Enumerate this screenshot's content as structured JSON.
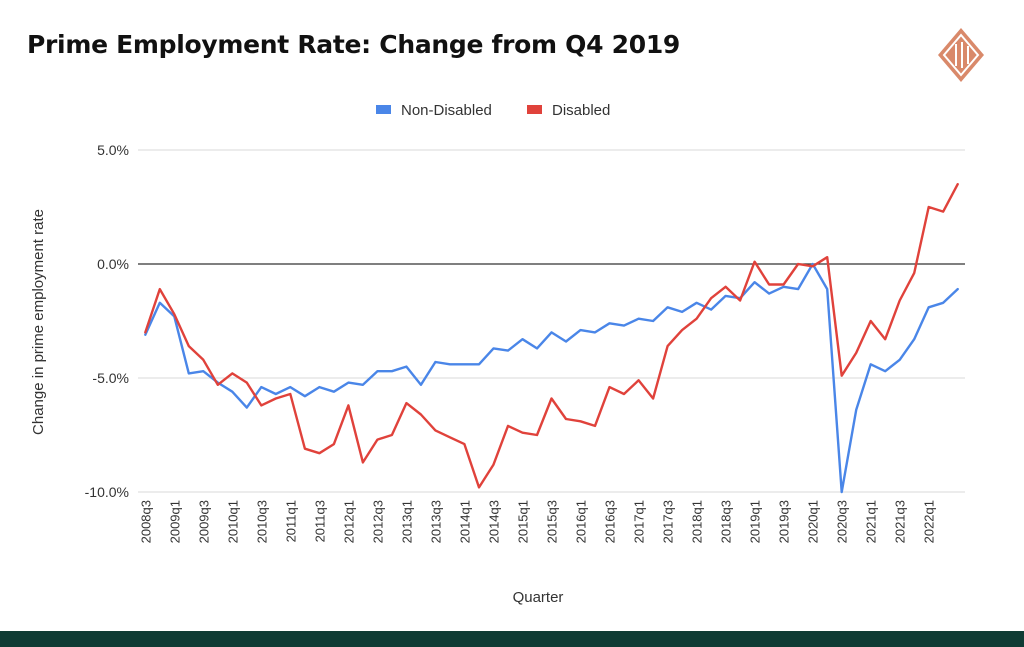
{
  "header": {
    "title": "Prime Employment Rate: Change from Q4 2019"
  },
  "footer": {
    "color": "#0f3b34"
  },
  "chart_data": {
    "type": "line",
    "title": "Prime Employment Rate: Change from Q4 2019",
    "xlabel": "Quarter",
    "ylabel": "Change in prime employment rate",
    "ylim": [
      -10,
      5
    ],
    "yticks": [
      5,
      0,
      -5,
      -10
    ],
    "ytick_labels": [
      "5.0%",
      "0.0%",
      "-5.0%",
      "-10.0%"
    ],
    "grid": true,
    "legend_position": "top",
    "x": [
      "2008q3",
      "2008q4",
      "2009q1",
      "2009q2",
      "2009q3",
      "2009q4",
      "2010q1",
      "2010q2",
      "2010q3",
      "2010q4",
      "2011q1",
      "2011q2",
      "2011q3",
      "2011q4",
      "2012q1",
      "2012q2",
      "2012q3",
      "2012q4",
      "2013q1",
      "2013q2",
      "2013q3",
      "2013q4",
      "2014q1",
      "2014q2",
      "2014q3",
      "2014q4",
      "2015q1",
      "2015q2",
      "2015q3",
      "2015q4",
      "2016q1",
      "2016q2",
      "2016q3",
      "2016q4",
      "2017q1",
      "2017q2",
      "2017q3",
      "2017q4",
      "2018q1",
      "2018q2",
      "2018q3",
      "2018q4",
      "2019q1",
      "2019q2",
      "2019q3",
      "2019q4",
      "2020q1",
      "2020q2",
      "2020q3",
      "2020q4",
      "2021q1",
      "2021q2",
      "2021q3",
      "2021q4",
      "2022q1",
      "2022q2",
      "2022q3"
    ],
    "x_tick_labels": [
      "2008q3",
      "2009q1",
      "2009q3",
      "2010q1",
      "2010q3",
      "2011q1",
      "2011q3",
      "2012q1",
      "2012q3",
      "2013q1",
      "2013q3",
      "2014q1",
      "2014q3",
      "2015q1",
      "2015q3",
      "2016q1",
      "2016q3",
      "2017q1",
      "2017q3",
      "2018q1",
      "2018q3",
      "2019q1",
      "2019q3",
      "2020q1",
      "2020q3",
      "2021q1",
      "2021q3",
      "2022q1"
    ],
    "series": [
      {
        "name": "Non-Disabled",
        "color": "#4a86e8",
        "values": [
          -3.1,
          -1.7,
          -2.3,
          -4.8,
          -4.7,
          -5.2,
          -5.6,
          -6.3,
          -5.4,
          -5.7,
          -5.4,
          -5.8,
          -5.4,
          -5.6,
          -5.2,
          -5.3,
          -4.7,
          -4.7,
          -4.5,
          -5.3,
          -4.3,
          -4.4,
          -4.4,
          -4.4,
          -3.7,
          -3.8,
          -3.3,
          -3.7,
          -3.0,
          -3.4,
          -2.9,
          -3.0,
          -2.6,
          -2.7,
          -2.4,
          -2.5,
          -1.9,
          -2.1,
          -1.7,
          -2.0,
          -1.4,
          -1.5,
          -0.8,
          -1.3,
          -1.0,
          -1.1,
          0.0,
          -1.1,
          -10.0,
          -6.4,
          -4.4,
          -4.7,
          -4.2,
          -3.3,
          -1.9,
          -1.7,
          -1.1
        ]
      },
      {
        "name": "Disabled",
        "color": "#e0423b",
        "values": [
          -3.0,
          -1.1,
          -2.2,
          -3.6,
          -4.2,
          -5.3,
          -4.8,
          -5.2,
          -6.2,
          -5.9,
          -5.7,
          -8.1,
          -8.3,
          -7.9,
          -6.2,
          -8.7,
          -7.7,
          -7.5,
          -6.1,
          -6.6,
          -7.3,
          -7.6,
          -7.9,
          -9.8,
          -8.8,
          -7.1,
          -7.4,
          -7.5,
          -5.9,
          -6.8,
          -6.9,
          -7.1,
          -5.4,
          -5.7,
          -5.1,
          -5.9,
          -3.6,
          -2.9,
          -2.4,
          -1.5,
          -1.0,
          -1.6,
          0.1,
          -0.9,
          -0.9,
          0.0,
          -0.1,
          0.3,
          -4.9,
          -3.9,
          -2.5,
          -3.3,
          -1.6,
          -0.4,
          2.5,
          2.3,
          3.5
        ]
      }
    ]
  }
}
